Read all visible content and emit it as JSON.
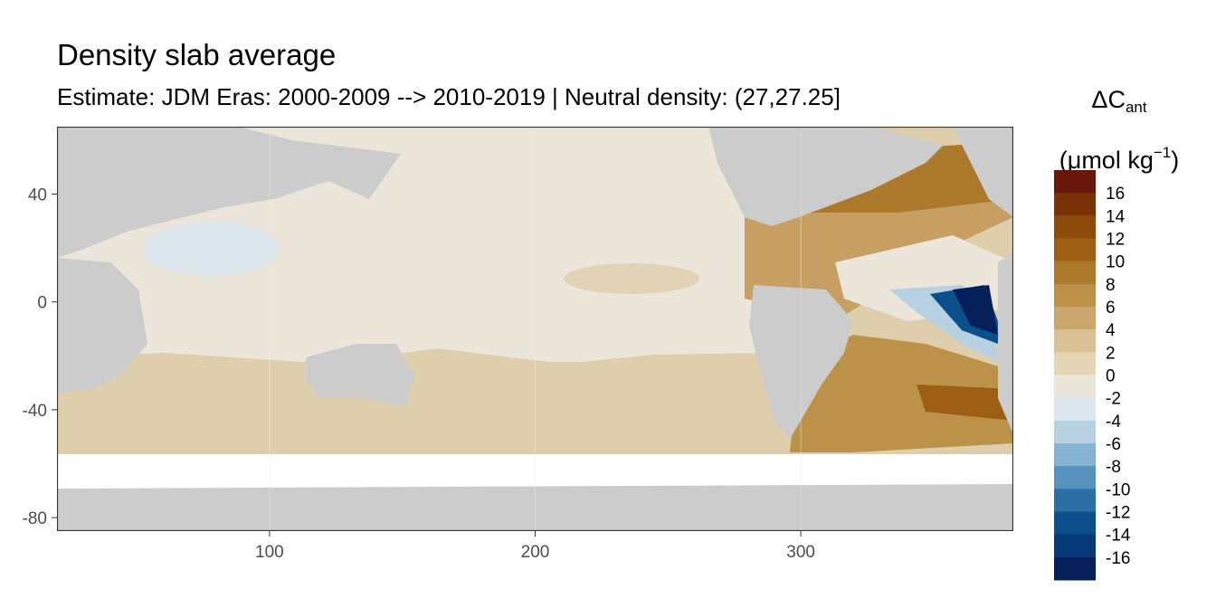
{
  "title": "Density slab average",
  "subtitle": "Estimate: JDM Eras: 2000-2009 --> 2010-2019 | Neutral density: (27,27.25]",
  "legend": {
    "symbol": "ΔC",
    "subscript": "ant",
    "unit_prefix": "(μmol kg",
    "unit_sup": "−1",
    "unit_suffix": ")",
    "labels": [
      "16",
      "14",
      "12",
      "10",
      "8",
      "6",
      "4",
      "2",
      "0",
      "-2",
      "-4",
      "-6",
      "-8",
      "-10",
      "-12",
      "-14",
      "-16"
    ],
    "colors": [
      "#67180a",
      "#7a3308",
      "#8c4a0b",
      "#9c5f14",
      "#ad7a2c",
      "#bc9149",
      "#cba76e",
      "#dac195",
      "#e6d6b6",
      "#ece6da",
      "#dce8ee",
      "#b7d0e2",
      "#87b3d3",
      "#5791bd",
      "#2b6fa4",
      "#0b508d",
      "#063a78",
      "#041f5a"
    ]
  },
  "axes": {
    "x_ticks": [
      100,
      200,
      300
    ],
    "y_ticks": [
      40,
      0,
      -40,
      -80
    ],
    "xlim": [
      20,
      380
    ],
    "ylim": [
      -85,
      65
    ]
  },
  "colors": {
    "land": "#cccccc",
    "no_data": "#ffffff",
    "panel_border": "#333333",
    "grid": "#ebebeb"
  }
}
